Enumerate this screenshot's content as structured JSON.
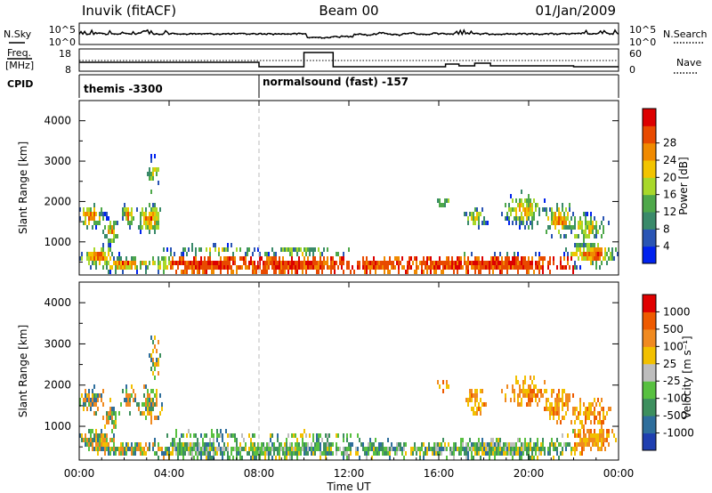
{
  "header": {
    "station": "Inuvik (fitACF)",
    "beam": "Beam 00",
    "date": "01/Jan/2009"
  },
  "left_labels": {
    "nsky": "N.Sky",
    "freq_top": "Freq.",
    "freq_unit": "[MHz]",
    "cpid": "CPID"
  },
  "right_labels": {
    "nsearch": "N.Search",
    "nave": "Nave"
  },
  "cpid_segments": [
    {
      "label": "themis -3300",
      "start_hour": 0
    },
    {
      "label": "normalsound (fast) -157",
      "start_hour": 8
    }
  ],
  "noise_axis": {
    "left_ticks": [
      "10^5",
      "10^0"
    ],
    "right_ticks": [
      "10^5",
      "10^0"
    ]
  },
  "freq_axis": {
    "left_ticks": [
      "18",
      "8"
    ],
    "right_ticks": [
      "60",
      "0"
    ]
  },
  "chart_data": [
    {
      "type": "heatmap",
      "panel": "power",
      "xlabel": "",
      "ylabel": "Slant Range [km]",
      "y_ticks": [
        "1000",
        "2000",
        "3000",
        "4000"
      ],
      "ylim": [
        180,
        4500
      ],
      "xlim_hours": [
        0,
        24
      ],
      "colorbar": {
        "label": "Power [dB]",
        "ticks": [
          "4",
          "8",
          "12",
          "16",
          "20",
          "24",
          "28"
        ],
        "colors": [
          "#0022ee",
          "#2a55b4",
          "#3a8a6a",
          "#4ea84a",
          "#a8d82a",
          "#f2c400",
          "#f08a00",
          "#e84a00",
          "#dc0000"
        ]
      }
    },
    {
      "type": "heatmap",
      "panel": "velocity",
      "xlabel": "Time UT",
      "ylabel": "Slant Range [km]",
      "y_ticks": [
        "1000",
        "2000",
        "3000",
        "4000"
      ],
      "x_ticks": [
        "00:00",
        "04:00",
        "08:00",
        "12:00",
        "16:00",
        "20:00",
        "00:00"
      ],
      "ylim": [
        180,
        4500
      ],
      "xlim_hours": [
        0,
        24
      ],
      "colorbar": {
        "label": "Velocity [m s⁻¹]",
        "ticks": [
          "1000",
          "500",
          "100",
          "25",
          "-25",
          "-100",
          "-500",
          "-1000"
        ],
        "colors": [
          "#1f3fb0",
          "#2e6e9c",
          "#3d8f5e",
          "#58c040",
          "#bdbdbd",
          "#f2c000",
          "#f08a20",
          "#ee5a00",
          "#e00000"
        ]
      }
    }
  ]
}
